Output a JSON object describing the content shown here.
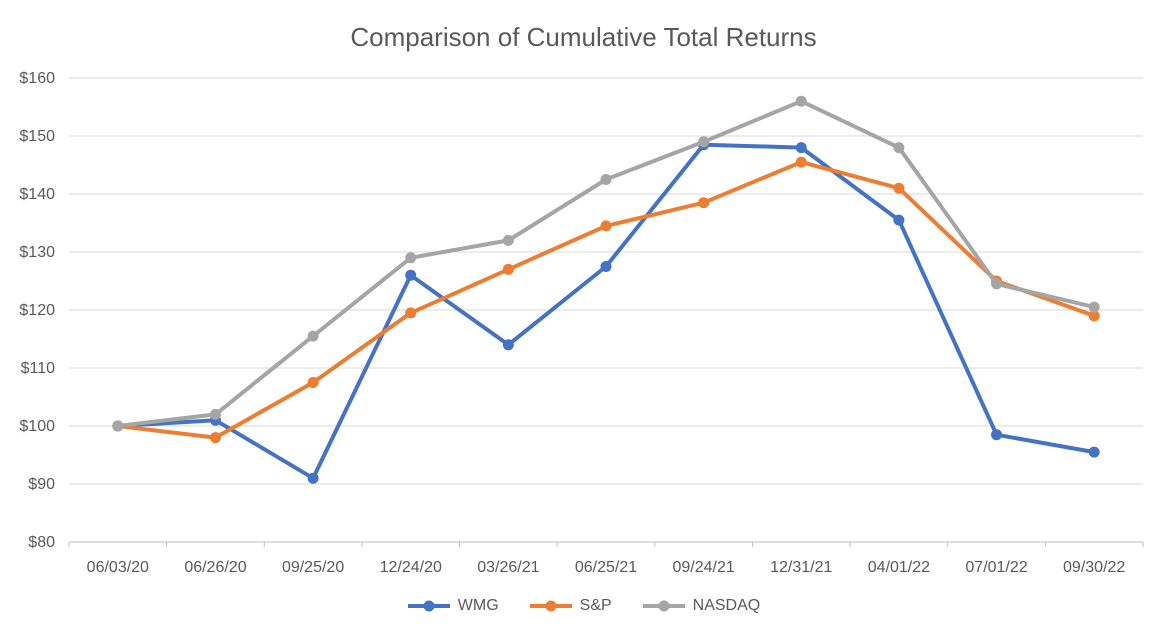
{
  "title": "Comparison of Cumulative Total Returns",
  "chart_data": {
    "type": "line",
    "title": "Comparison of Cumulative Total Returns",
    "categories": [
      "06/03/20",
      "06/26/20",
      "09/25/20",
      "12/24/20",
      "03/26/21",
      "06/25/21",
      "09/24/21",
      "12/31/21",
      "04/01/22",
      "07/01/22",
      "09/30/22"
    ],
    "series": [
      {
        "name": "WMG",
        "color": "#4472C4",
        "values": [
          100,
          101,
          91,
          126,
          114,
          127.5,
          148.5,
          148,
          135.5,
          98.5,
          95.5
        ]
      },
      {
        "name": "S&P",
        "color": "#ED7D31",
        "values": [
          100,
          98,
          107.5,
          119.5,
          127,
          134.5,
          138.5,
          145.5,
          141,
          125,
          119
        ]
      },
      {
        "name": "NASDAQ",
        "color": "#A5A5A5",
        "values": [
          100,
          102,
          115.5,
          129,
          132,
          142.5,
          149,
          156,
          148,
          124.5,
          120.5
        ]
      }
    ],
    "ylim": [
      80,
      160
    ],
    "ytick_step": 10,
    "ytick_prefix": "$",
    "grid": "on",
    "legend_position": "bottom",
    "gridline_color": "#D9D9D9",
    "axis_color": "#BFBFBF",
    "text_color": "#595959"
  }
}
